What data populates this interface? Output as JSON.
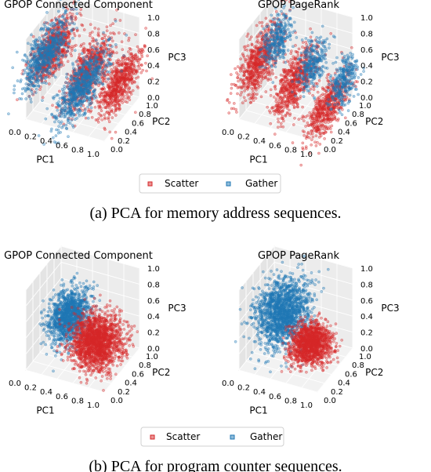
{
  "colors": {
    "scatter": "#d62728",
    "gather": "#1f77b4"
  },
  "captions": [
    "(a) PCA for memory address sequences.",
    "(b) PCA for program counter sequences."
  ],
  "chart_data": [
    {
      "type": "scatter",
      "projection": "3d",
      "title": "GPOP Connected Component",
      "xlabel": "PC1",
      "ylabel": "PC2",
      "zlabel": "PC3",
      "xlim": [
        0,
        1
      ],
      "ylim": [
        0,
        1
      ],
      "zlim": [
        0,
        1
      ],
      "x_ticks": [
        "0.0",
        "0.2",
        "0.4",
        "0.6",
        "0.8",
        "1.0"
      ],
      "y_ticks": [
        "0.0",
        "0.2",
        "0.4",
        "0.6",
        "0.8",
        "1.0"
      ],
      "z_ticks": [
        "0.0",
        "0.2",
        "0.4",
        "0.6",
        "0.8",
        "1.0"
      ],
      "legend": [
        "Scatter",
        "Gather"
      ],
      "series": [
        {
          "name": "Scatter",
          "color": "#d62728",
          "clusters": [
            {
              "x": 0.1,
              "y": 0.55,
              "z": 0.6,
              "sx": 0.04,
              "sy": 0.3,
              "sz": 0.14,
              "n": 700
            },
            {
              "x": 0.55,
              "y": 0.55,
              "z": 0.45,
              "sx": 0.04,
              "sy": 0.32,
              "sz": 0.16,
              "n": 700
            },
            {
              "x": 0.95,
              "y": 0.55,
              "z": 0.4,
              "sx": 0.04,
              "sy": 0.3,
              "sz": 0.14,
              "n": 650
            }
          ]
        },
        {
          "name": "Gather",
          "color": "#1f77b4",
          "clusters": [
            {
              "x": 0.0,
              "y": 0.55,
              "z": 0.5,
              "sx": 0.04,
              "sy": 0.32,
              "sz": 0.15,
              "n": 650
            },
            {
              "x": 0.45,
              "y": 0.55,
              "z": 0.2,
              "sx": 0.05,
              "sy": 0.35,
              "sz": 0.14,
              "n": 750
            }
          ]
        }
      ]
    },
    {
      "type": "scatter",
      "projection": "3d",
      "title": "GPOP PageRank",
      "xlabel": "PC1",
      "ylabel": "PC2",
      "zlabel": "PC3",
      "xlim": [
        0,
        1
      ],
      "ylim": [
        0,
        1
      ],
      "zlim": [
        0,
        1
      ],
      "x_ticks": [
        "0.0",
        "0.2",
        "0.4",
        "0.6",
        "0.8",
        "1.0"
      ],
      "y_ticks": [
        "0.0",
        "0.2",
        "0.4",
        "0.6",
        "0.8",
        "1.0"
      ],
      "z_ticks": [
        "0.0",
        "0.2",
        "0.4",
        "0.6",
        "0.8",
        "1.0"
      ],
      "legend": [
        "Scatter",
        "Gather"
      ],
      "series": [
        {
          "name": "Scatter",
          "color": "#d62728",
          "clusters": [
            {
              "x": 0.05,
              "y": 0.45,
              "z": 0.5,
              "sx": 0.04,
              "sy": 0.3,
              "sz": 0.16,
              "n": 650
            },
            {
              "x": 0.5,
              "y": 0.45,
              "z": 0.35,
              "sx": 0.04,
              "sy": 0.3,
              "sz": 0.16,
              "n": 650
            },
            {
              "x": 0.92,
              "y": 0.45,
              "z": 0.15,
              "sx": 0.04,
              "sy": 0.3,
              "sz": 0.14,
              "n": 550
            }
          ]
        },
        {
          "name": "Gather",
          "color": "#1f77b4",
          "clusters": [
            {
              "x": 0.15,
              "y": 0.75,
              "z": 0.62,
              "sx": 0.04,
              "sy": 0.18,
              "sz": 0.14,
              "n": 320
            },
            {
              "x": 0.6,
              "y": 0.75,
              "z": 0.45,
              "sx": 0.04,
              "sy": 0.18,
              "sz": 0.14,
              "n": 300
            },
            {
              "x": 1.0,
              "y": 0.75,
              "z": 0.35,
              "sx": 0.04,
              "sy": 0.18,
              "sz": 0.14,
              "n": 300
            }
          ]
        }
      ]
    },
    {
      "type": "scatter",
      "projection": "3d",
      "title": "GPOP Connected Component",
      "xlabel": "PC1",
      "ylabel": "PC2",
      "zlabel": "PC3",
      "xlim": [
        0,
        1
      ],
      "ylim": [
        0,
        1
      ],
      "zlim": [
        0,
        1
      ],
      "x_ticks": [
        "0.0",
        "0.2",
        "0.4",
        "0.6",
        "0.8",
        "1.0"
      ],
      "y_ticks": [
        "0.0",
        "0.2",
        "0.4",
        "0.6",
        "0.8",
        "1.0"
      ],
      "z_ticks": [
        "0.0",
        "0.2",
        "0.4",
        "0.6",
        "0.8",
        "1.0"
      ],
      "legend": [
        "Scatter",
        "Gather"
      ],
      "series": [
        {
          "name": "Gather",
          "color": "#1f77b4",
          "clusters": [
            {
              "x": 0.3,
              "y": 0.55,
              "z": 0.45,
              "sx": 0.1,
              "sy": 0.18,
              "sz": 0.13,
              "n": 1300
            }
          ]
        },
        {
          "name": "Scatter",
          "color": "#d62728",
          "clusters": [
            {
              "x": 0.7,
              "y": 0.45,
              "z": 0.3,
              "sx": 0.14,
              "sy": 0.18,
              "sz": 0.14,
              "n": 1700
            }
          ]
        }
      ]
    },
    {
      "type": "scatter",
      "projection": "3d",
      "title": "GPOP PageRank",
      "xlabel": "PC1",
      "ylabel": "PC2",
      "zlabel": "PC3",
      "xlim": [
        0,
        1
      ],
      "ylim": [
        0,
        1
      ],
      "zlim": [
        0,
        1
      ],
      "x_ticks": [
        "0.0",
        "0.2",
        "0.4",
        "0.6",
        "0.8",
        "1.0"
      ],
      "y_ticks": [
        "0.0",
        "0.2",
        "0.4",
        "0.6",
        "0.8",
        "1.0"
      ],
      "z_ticks": [
        "0.0",
        "0.2",
        "0.4",
        "0.6",
        "0.8",
        "1.0"
      ],
      "legend": [
        "Scatter",
        "Gather"
      ],
      "series": [
        {
          "name": "Gather",
          "color": "#1f77b4",
          "clusters": [
            {
              "x": 0.3,
              "y": 0.55,
              "z": 0.5,
              "sx": 0.14,
              "sy": 0.22,
              "sz": 0.17,
              "n": 1600
            }
          ]
        },
        {
          "name": "Scatter",
          "color": "#d62728",
          "clusters": [
            {
              "x": 0.72,
              "y": 0.45,
              "z": 0.28,
              "sx": 0.11,
              "sy": 0.14,
              "sz": 0.11,
              "n": 1300
            }
          ]
        }
      ]
    }
  ]
}
